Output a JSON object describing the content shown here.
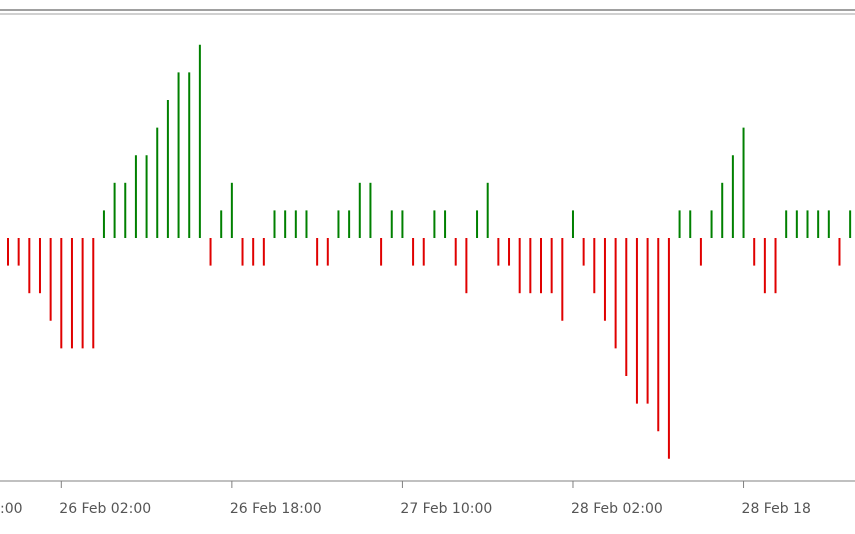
{
  "chart_data": {
    "type": "bar",
    "values": [
      -1,
      -1,
      -2,
      -2,
      -3,
      -4,
      -4,
      -4,
      -4,
      1,
      2,
      2,
      3,
      3,
      4,
      5,
      6,
      6,
      7,
      -1,
      1,
      2,
      -1,
      -1,
      -1,
      1,
      1,
      1,
      1,
      -1,
      -1,
      1,
      1,
      2,
      2,
      -1,
      1,
      1,
      -1,
      -1,
      1,
      1,
      -1,
      -2,
      1,
      2,
      -1,
      -1,
      -2,
      -2,
      -2,
      -2,
      -3,
      1,
      -1,
      -2,
      -3,
      -4,
      -5,
      -6,
      -6,
      -7,
      -8,
      1,
      1,
      -1,
      1,
      2,
      3,
      4,
      -1,
      -2,
      -2,
      1,
      1,
      1,
      1,
      1,
      -1,
      1
    ],
    "categories": [
      null,
      null,
      null,
      null,
      null,
      "26 Feb 02:00",
      null,
      null,
      null,
      null,
      null,
      null,
      null,
      null,
      null,
      null,
      null,
      null,
      null,
      null,
      null,
      "26 Feb 18:00",
      null,
      null,
      null,
      null,
      null,
      null,
      null,
      null,
      null,
      null,
      null,
      null,
      null,
      null,
      null,
      "27 Feb 10:00",
      null,
      null,
      null,
      null,
      null,
      null,
      null,
      null,
      null,
      null,
      null,
      null,
      null,
      null,
      null,
      "28 Feb 02:00",
      null,
      null,
      null,
      null,
      null,
      null,
      null,
      null,
      null,
      null,
      null,
      null,
      null,
      null,
      null,
      "28 Feb 18",
      null,
      null,
      null,
      null,
      null,
      null,
      null,
      null,
      null,
      null
    ],
    "leading_label": ":00",
    "positive_color": "#008000",
    "negative_color": "#e00000"
  }
}
